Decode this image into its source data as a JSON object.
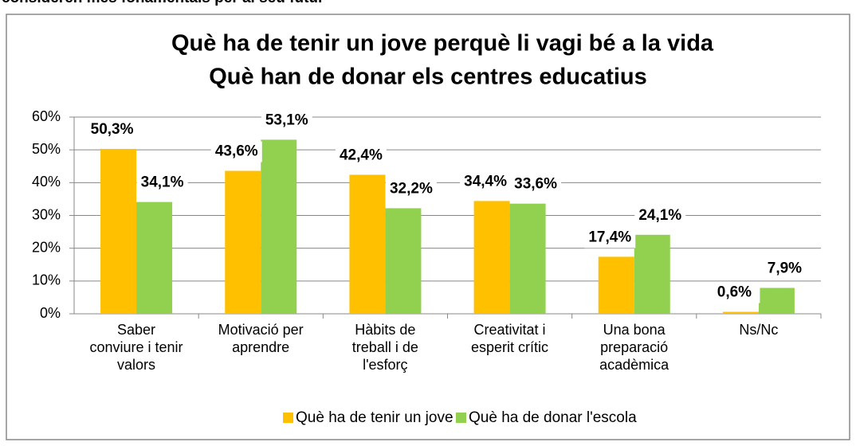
{
  "header": "consideren més fonamentals per al seu futur",
  "chart_data": {
    "type": "bar",
    "title": "Què ha de tenir un jove perquè li vagi bé a la vida",
    "subtitle": "Què han de donar els centres educatius",
    "categories": [
      "Saber\nconviure i tenir\nvalors",
      "Motivació per\naprendre",
      "Hàbits de\ntreball i de\nl'esforç",
      "Creativitat i\nesperit crític",
      "Una bona\npreparació\nacadèmica",
      "Ns/Nc"
    ],
    "series": [
      {
        "name": "Què ha de tenir un jove",
        "color": "#ffc000",
        "values": [
          50.3,
          43.6,
          42.4,
          34.4,
          17.4,
          0.6
        ],
        "value_labels": [
          "50,3%",
          "43,6%",
          "42,4%",
          "34,4%",
          "17,4%",
          "0,6%"
        ]
      },
      {
        "name": "Què ha de donar l'escola",
        "color": "#92d050",
        "values": [
          34.1,
          53.1,
          32.2,
          33.6,
          24.1,
          7.9
        ],
        "value_labels": [
          "34,1%",
          "53,1%",
          "32,2%",
          "33,6%",
          "24,1%",
          "7,9%"
        ]
      }
    ],
    "ylim": [
      0,
      60
    ],
    "yticks": [
      {
        "value": 0,
        "label": "0%"
      },
      {
        "value": 10,
        "label": "10%"
      },
      {
        "value": 20,
        "label": "20%"
      },
      {
        "value": 30,
        "label": "30%"
      },
      {
        "value": 40,
        "label": "40%"
      },
      {
        "value": 50,
        "label": "50%"
      },
      {
        "value": 60,
        "label": "60%"
      }
    ],
    "grid": true,
    "legend": "bottom"
  }
}
